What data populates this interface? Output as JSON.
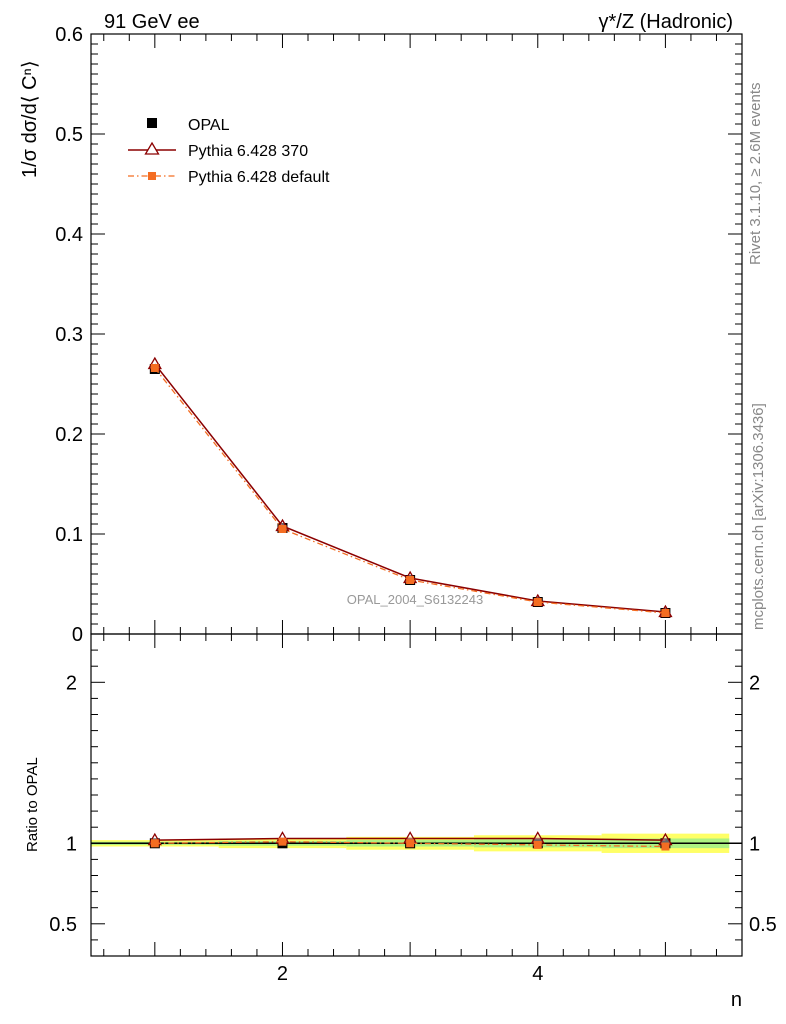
{
  "header": {
    "left_title": "91 GeV ee",
    "right_title": "γ*/Z (Hadronic)"
  },
  "side_text": {
    "rivet": "Rivet 3.1.10, ≥ 2.6M events",
    "mcplots": "mcplots.cern.ch [arXiv:1306.3436]"
  },
  "watermark": "OPAL_2004_S6132243",
  "legend": {
    "items": [
      {
        "label": "OPAL",
        "marker": "filled-square",
        "color": "#000000"
      },
      {
        "label": "Pythia 6.428 370",
        "marker": "open-triangle",
        "color": "#8b0000"
      },
      {
        "label": "Pythia 6.428 default",
        "marker": "filled-square-dashdot",
        "color": "#f46d22"
      }
    ]
  },
  "chart_data": [
    {
      "type": "line",
      "panel": "main",
      "ylabel": "1/σ dσ/d⟨ Cⁿ⟩",
      "xlim": [
        0.5,
        5.6
      ],
      "ylim": [
        0,
        0.6
      ],
      "yticks": [
        0,
        0.1,
        0.2,
        0.3,
        0.4,
        0.5,
        0.6
      ],
      "ytick_labels": [
        "0",
        "0.1",
        "0.2",
        "0.3",
        "0.4",
        "0.5",
        "0.6"
      ],
      "x": [
        1,
        2,
        3,
        4,
        5
      ],
      "series": [
        {
          "name": "OPAL",
          "values": [
            0.265,
            0.106,
            0.054,
            0.032,
            0.021
          ]
        },
        {
          "name": "Pythia 6.428 370",
          "values": [
            0.27,
            0.108,
            0.056,
            0.033,
            0.022
          ]
        },
        {
          "name": "Pythia 6.428 default",
          "values": [
            0.266,
            0.105,
            0.054,
            0.032,
            0.021
          ]
        }
      ]
    },
    {
      "type": "line",
      "panel": "ratio",
      "ylabel": "Ratio to OPAL",
      "xlabel": "n",
      "xlim": [
        0.5,
        5.6
      ],
      "ylim": [
        0.3,
        2.3
      ],
      "yticks": [
        0.5,
        1,
        2
      ],
      "ytick_labels": [
        "0.5",
        "1",
        "2"
      ],
      "xticks": [
        2,
        4
      ],
      "xtick_labels": [
        "2",
        "4"
      ],
      "x": [
        1,
        2,
        3,
        4,
        5
      ],
      "band": {
        "x": [
          1,
          2,
          3,
          4,
          5
        ],
        "half_width": [
          0.02,
          0.03,
          0.04,
          0.05,
          0.06
        ]
      },
      "series": [
        {
          "name": "OPAL",
          "values": [
            1,
            1,
            1,
            1,
            1
          ]
        },
        {
          "name": "Pythia 6.428 370",
          "values": [
            1.02,
            1.03,
            1.03,
            1.03,
            1.02
          ]
        },
        {
          "name": "Pythia 6.428 default",
          "values": [
            1.0,
            1.01,
            1.0,
            0.99,
            0.98
          ]
        }
      ]
    }
  ]
}
